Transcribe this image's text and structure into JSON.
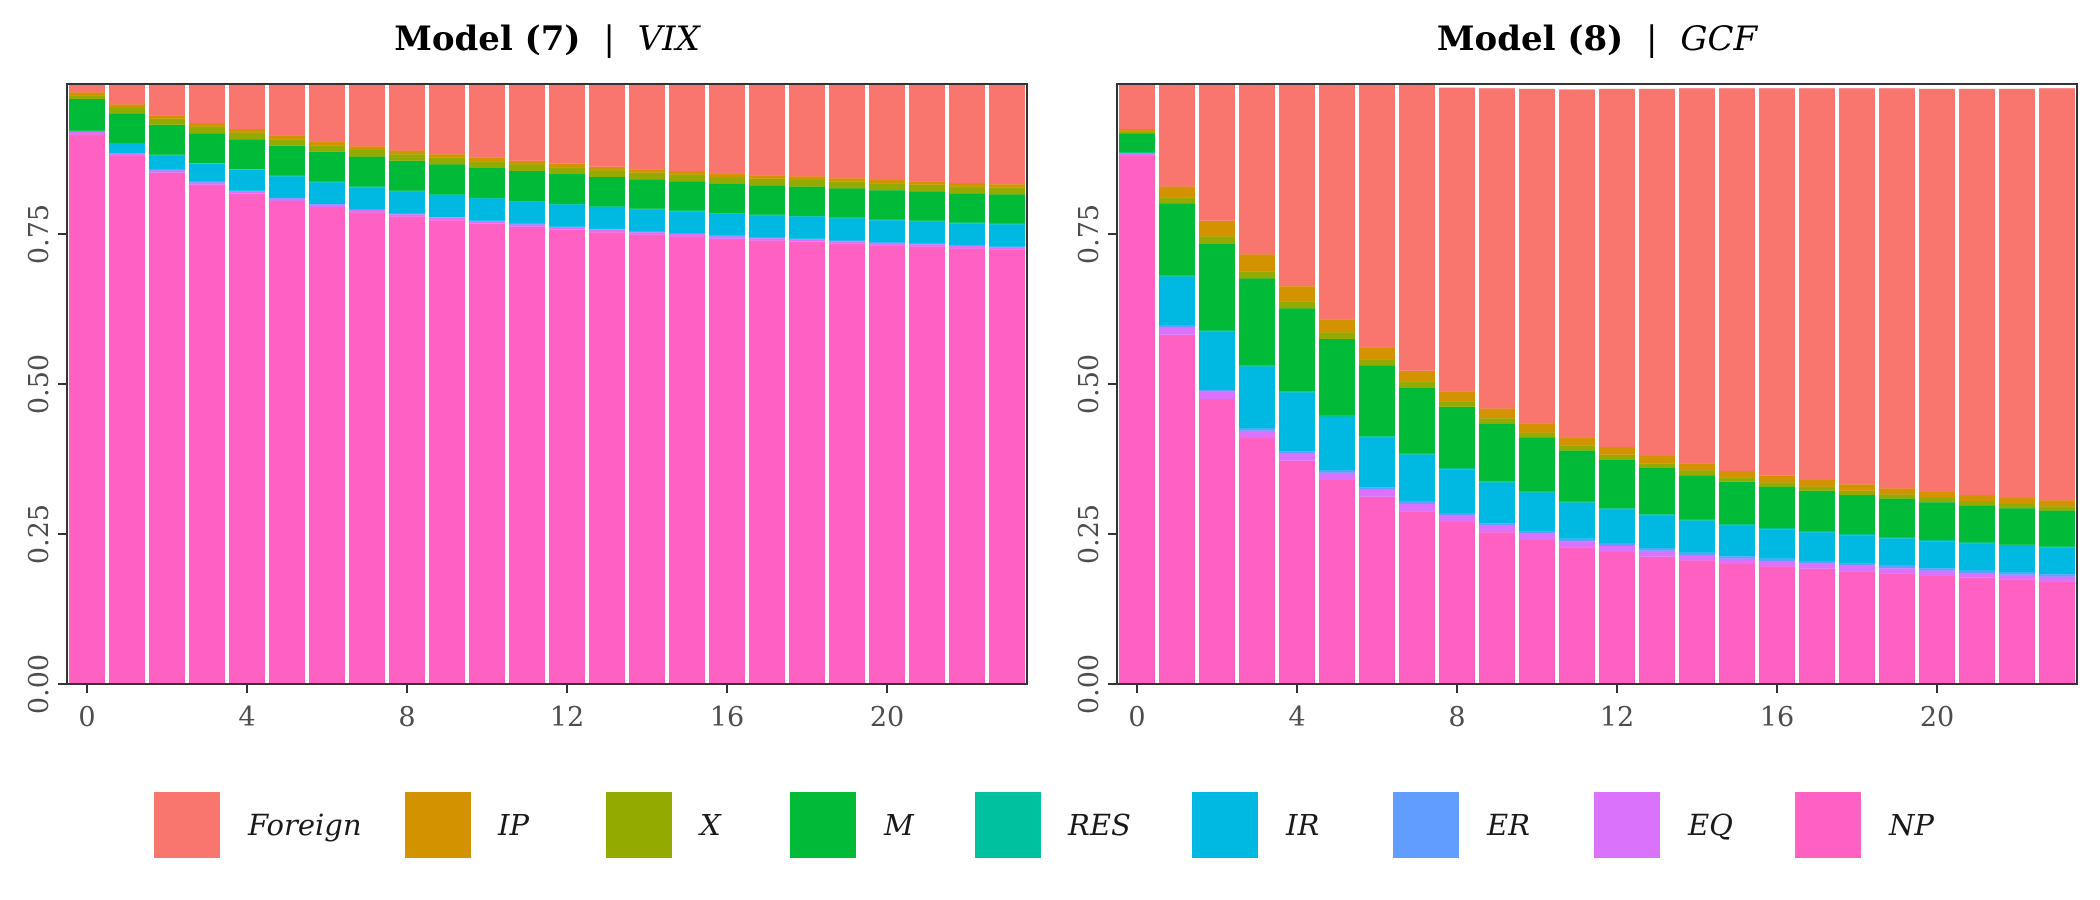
{
  "chart_data": [
    {
      "type": "bar",
      "stacked": true,
      "title": {
        "model": "Model (7)",
        "separator": "|",
        "variable": "VIX"
      },
      "x": [
        0,
        1,
        2,
        3,
        4,
        5,
        6,
        7,
        8,
        9,
        10,
        11,
        12,
        13,
        14,
        15,
        16,
        17,
        18,
        19,
        20,
        21,
        22,
        23
      ],
      "x_ticks": [
        0,
        4,
        8,
        12,
        16,
        20
      ],
      "y_ticks": [
        "0.00",
        "0.25",
        "0.50",
        "0.75"
      ],
      "xlim": [
        -0.5,
        23.5
      ],
      "ylim": [
        0,
        1.0
      ],
      "grid": false,
      "stack_order_bottom_to_top": [
        "NP",
        "EQ",
        "ER",
        "IR",
        "RES",
        "M",
        "X",
        "IP",
        "Foreign"
      ],
      "series": [
        {
          "name": "NP",
          "values": [
            0.916,
            0.88,
            0.852,
            0.832,
            0.817,
            0.805,
            0.795,
            0.786,
            0.779,
            0.773,
            0.767,
            0.762,
            0.757,
            0.753,
            0.749,
            0.746,
            0.742,
            0.739,
            0.737,
            0.734,
            0.731,
            0.729,
            0.726,
            0.724
          ]
        },
        {
          "name": "EQ",
          "values": [
            0.004,
            0.004,
            0.004,
            0.004,
            0.004,
            0.004,
            0.004,
            0.004,
            0.004,
            0.004,
            0.004,
            0.004,
            0.004,
            0.004,
            0.004,
            0.004,
            0.004,
            0.004,
            0.004,
            0.004,
            0.004,
            0.004,
            0.004,
            0.004
          ]
        },
        {
          "name": "ER",
          "values": [
            0.001,
            0.001,
            0.001,
            0.001,
            0.001,
            0.001,
            0.001,
            0.001,
            0.001,
            0.001,
            0.001,
            0.001,
            0.001,
            0.001,
            0.001,
            0.001,
            0.001,
            0.001,
            0.001,
            0.001,
            0.001,
            0.001,
            0.001,
            0.001
          ]
        },
        {
          "name": "IR",
          "values": [
            0.0,
            0.015,
            0.024,
            0.03,
            0.035,
            0.036,
            0.036,
            0.037,
            0.037,
            0.037,
            0.037,
            0.037,
            0.037,
            0.037,
            0.037,
            0.037,
            0.037,
            0.037,
            0.037,
            0.037,
            0.037,
            0.037,
            0.037,
            0.037
          ]
        },
        {
          "name": "RES",
          "values": [
            0.001,
            0.001,
            0.001,
            0.001,
            0.001,
            0.001,
            0.001,
            0.001,
            0.001,
            0.001,
            0.001,
            0.001,
            0.001,
            0.001,
            0.001,
            0.001,
            0.001,
            0.001,
            0.001,
            0.001,
            0.001,
            0.001,
            0.001,
            0.001
          ]
        },
        {
          "name": "M",
          "values": [
            0.053,
            0.05,
            0.05,
            0.05,
            0.05,
            0.05,
            0.05,
            0.05,
            0.05,
            0.05,
            0.05,
            0.05,
            0.05,
            0.049,
            0.049,
            0.049,
            0.049,
            0.049,
            0.049,
            0.049,
            0.049,
            0.049,
            0.049,
            0.049
          ]
        },
        {
          "name": "X",
          "values": [
            0.006,
            0.009,
            0.01,
            0.011,
            0.011,
            0.011,
            0.011,
            0.011,
            0.011,
            0.011,
            0.011,
            0.011,
            0.011,
            0.011,
            0.011,
            0.011,
            0.011,
            0.011,
            0.011,
            0.011,
            0.011,
            0.011,
            0.011,
            0.011
          ]
        },
        {
          "name": "IP",
          "values": [
            0.005,
            0.006,
            0.006,
            0.006,
            0.006,
            0.006,
            0.006,
            0.006,
            0.006,
            0.006,
            0.006,
            0.006,
            0.006,
            0.006,
            0.006,
            0.006,
            0.006,
            0.006,
            0.006,
            0.006,
            0.006,
            0.006,
            0.006,
            0.006
          ]
        },
        {
          "name": "Foreign",
          "values": [
            0.014,
            0.034,
            0.052,
            0.065,
            0.075,
            0.086,
            0.096,
            0.104,
            0.111,
            0.117,
            0.123,
            0.128,
            0.133,
            0.138,
            0.142,
            0.145,
            0.149,
            0.152,
            0.154,
            0.157,
            0.16,
            0.162,
            0.165,
            0.167
          ]
        }
      ]
    },
    {
      "type": "bar",
      "stacked": true,
      "title": {
        "model": "Model (8)",
        "separator": "|",
        "variable": "GCF"
      },
      "x": [
        0,
        1,
        2,
        3,
        4,
        5,
        6,
        7,
        8,
        9,
        10,
        11,
        12,
        13,
        14,
        15,
        16,
        17,
        18,
        19,
        20,
        21,
        22,
        23
      ],
      "x_ticks": [
        0,
        4,
        8,
        12,
        16,
        20
      ],
      "y_ticks": [
        "0.00",
        "0.25",
        "0.50",
        "0.75"
      ],
      "xlim": [
        -0.5,
        23.5
      ],
      "ylim": [
        0,
        1.0
      ],
      "grid": false,
      "stack_order_bottom_to_top": [
        "NP",
        "EQ",
        "ER",
        "IR",
        "RES",
        "M",
        "X",
        "IP",
        "Foreign"
      ],
      "series": [
        {
          "name": "NP",
          "values": [
            0.88,
            0.582,
            0.475,
            0.41,
            0.372,
            0.34,
            0.312,
            0.288,
            0.27,
            0.253,
            0.24,
            0.228,
            0.22,
            0.212,
            0.206,
            0.2,
            0.196,
            0.192,
            0.188,
            0.184,
            0.18,
            0.177,
            0.174,
            0.171
          ]
        },
        {
          "name": "EQ",
          "values": [
            0.004,
            0.012,
            0.012,
            0.012,
            0.012,
            0.012,
            0.012,
            0.012,
            0.011,
            0.011,
            0.011,
            0.01,
            0.01,
            0.01,
            0.009,
            0.009,
            0.009,
            0.009,
            0.009,
            0.009,
            0.009,
            0.008,
            0.008,
            0.008
          ]
        },
        {
          "name": "ER",
          "values": [
            0.001,
            0.003,
            0.003,
            0.004,
            0.004,
            0.004,
            0.004,
            0.004,
            0.004,
            0.004,
            0.004,
            0.004,
            0.004,
            0.004,
            0.004,
            0.004,
            0.004,
            0.004,
            0.004,
            0.004,
            0.004,
            0.004,
            0.004,
            0.004
          ]
        },
        {
          "name": "IR",
          "values": [
            0.0,
            0.082,
            0.097,
            0.103,
            0.098,
            0.089,
            0.083,
            0.078,
            0.073,
            0.068,
            0.064,
            0.06,
            0.057,
            0.055,
            0.053,
            0.051,
            0.049,
            0.048,
            0.047,
            0.046,
            0.045,
            0.045,
            0.044,
            0.044
          ]
        },
        {
          "name": "RES",
          "values": [
            0.001,
            0.002,
            0.002,
            0.002,
            0.002,
            0.002,
            0.002,
            0.002,
            0.002,
            0.002,
            0.002,
            0.002,
            0.002,
            0.002,
            0.002,
            0.002,
            0.002,
            0.002,
            0.002,
            0.002,
            0.002,
            0.002,
            0.002,
            0.002
          ]
        },
        {
          "name": "M",
          "values": [
            0.032,
            0.12,
            0.145,
            0.145,
            0.138,
            0.128,
            0.118,
            0.11,
            0.102,
            0.096,
            0.09,
            0.085,
            0.081,
            0.077,
            0.074,
            0.071,
            0.069,
            0.067,
            0.065,
            0.064,
            0.063,
            0.062,
            0.061,
            0.06
          ]
        },
        {
          "name": "X",
          "values": [
            0.003,
            0.01,
            0.012,
            0.012,
            0.011,
            0.011,
            0.01,
            0.01,
            0.009,
            0.009,
            0.008,
            0.008,
            0.008,
            0.008,
            0.008,
            0.007,
            0.007,
            0.007,
            0.007,
            0.007,
            0.007,
            0.007,
            0.007,
            0.007
          ]
        },
        {
          "name": "IP",
          "values": [
            0.004,
            0.018,
            0.026,
            0.028,
            0.026,
            0.022,
            0.02,
            0.018,
            0.017,
            0.016,
            0.015,
            0.014,
            0.013,
            0.012,
            0.012,
            0.011,
            0.011,
            0.011,
            0.011,
            0.01,
            0.01,
            0.01,
            0.01,
            0.01
          ]
        },
        {
          "name": "Foreign",
          "values": [
            0.075,
            0.171,
            0.228,
            0.284,
            0.337,
            0.392,
            0.439,
            0.478,
            0.506,
            0.534,
            0.558,
            0.58,
            0.597,
            0.612,
            0.625,
            0.638,
            0.646,
            0.653,
            0.66,
            0.667,
            0.672,
            0.677,
            0.682,
            0.687
          ]
        }
      ]
    }
  ],
  "legend": {
    "placement": "bottom",
    "items": [
      {
        "label": "Foreign",
        "color": "#F8766D"
      },
      {
        "label": "IP",
        "color": "#D39200"
      },
      {
        "label": "X",
        "color": "#93AA00"
      },
      {
        "label": "M",
        "color": "#00BA38"
      },
      {
        "label": "RES",
        "color": "#00C19F"
      },
      {
        "label": "IR",
        "color": "#00B9E3"
      },
      {
        "label": "ER",
        "color": "#619CFF"
      },
      {
        "label": "EQ",
        "color": "#DB72FB"
      },
      {
        "label": "NP",
        "color": "#FF61C3"
      }
    ]
  }
}
